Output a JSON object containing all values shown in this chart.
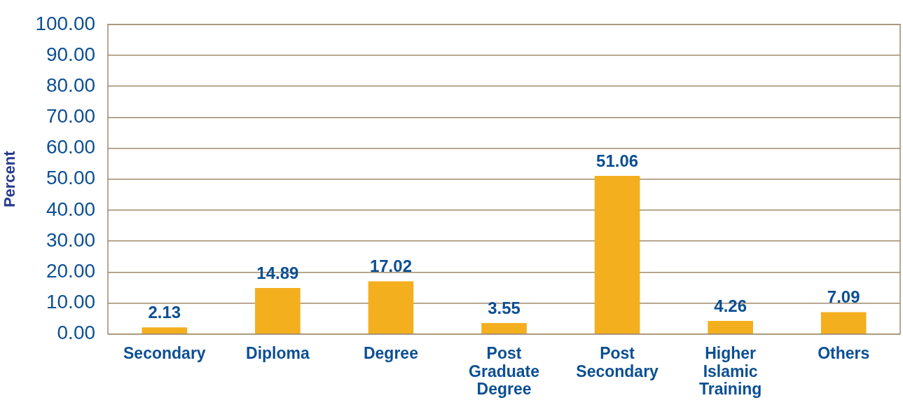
{
  "chart_data": {
    "type": "bar",
    "ylabel": "Percent",
    "categories": [
      "Secondary",
      "Diploma",
      "Degree",
      "Post Graduate Degree",
      "Post Secondary",
      "Higher Islamic Training",
      "Others"
    ],
    "values": [
      2.13,
      14.89,
      17.02,
      3.55,
      51.06,
      4.26,
      7.09
    ],
    "color": "#f4af1e",
    "ylim": [
      0,
      100
    ],
    "yticks": [
      {
        "value": 0,
        "label": "0.00"
      },
      {
        "value": 10,
        "label": "10.00"
      },
      {
        "value": 20,
        "label": "20.00"
      },
      {
        "value": 30,
        "label": "30.00"
      },
      {
        "value": 40,
        "label": "40.00"
      },
      {
        "value": 50,
        "label": "50.00"
      },
      {
        "value": 60,
        "label": "60.00"
      },
      {
        "value": 70,
        "label": "70.00"
      },
      {
        "value": 80,
        "label": "80.00"
      },
      {
        "value": 90,
        "label": "90.00"
      },
      {
        "value": 100,
        "label": "100.00"
      }
    ],
    "grid": "y",
    "legend": false,
    "data_labels": true
  }
}
